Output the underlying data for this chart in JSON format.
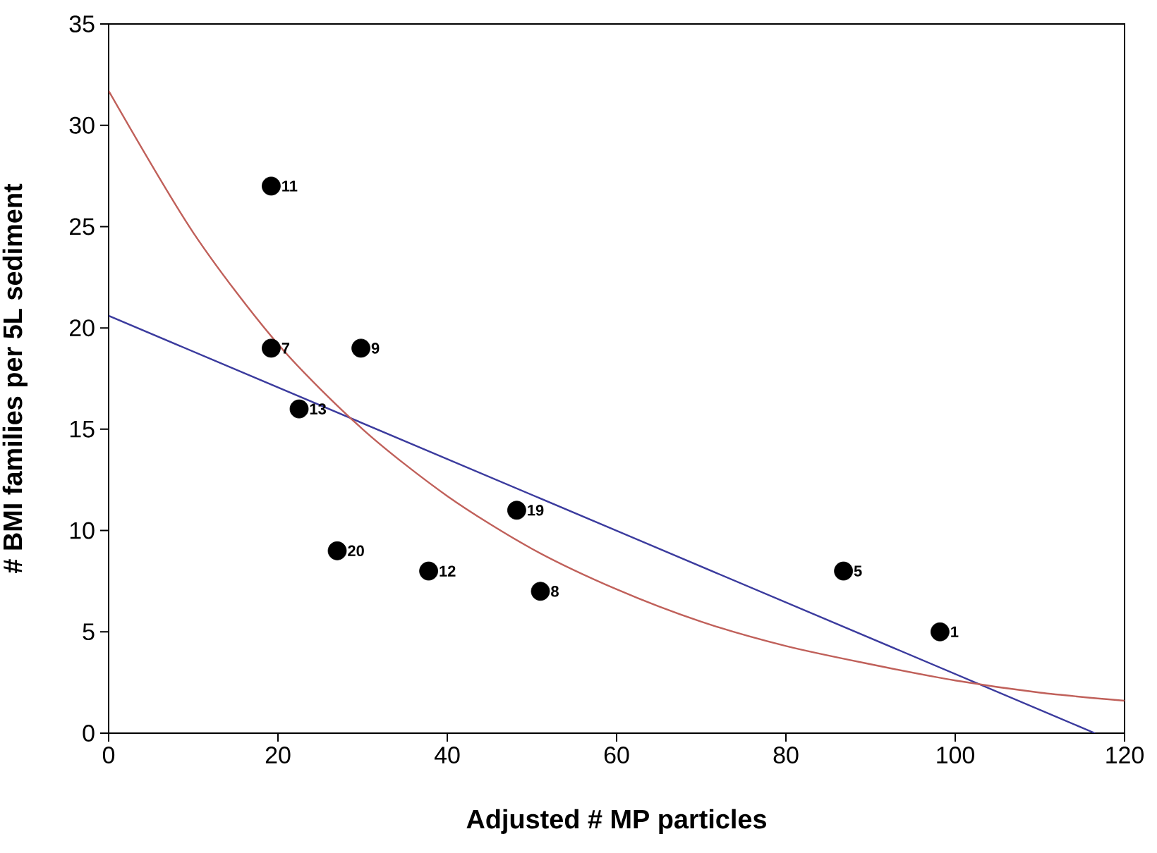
{
  "chart_data": {
    "type": "scatter",
    "xlabel": "Adjusted # MP particles",
    "ylabel": "# BMI families per 5L sediment",
    "xlim": [
      0,
      120
    ],
    "ylim": [
      0,
      35
    ],
    "xticks": [
      0,
      20,
      40,
      60,
      80,
      100,
      120
    ],
    "yticks": [
      0,
      5,
      10,
      15,
      20,
      25,
      30,
      35
    ],
    "grid": false,
    "series": [
      {
        "color": "#000000",
        "marker": "circle",
        "x": [
          19.2,
          19.2,
          29.8,
          22.5,
          27,
          37.8,
          48.2,
          51,
          86.8,
          98.2
        ],
        "values": [
          27,
          19,
          19,
          16,
          9,
          8,
          11,
          7,
          8,
          5
        ]
      },
      {
        "type": "line",
        "color": "#3b3b9e",
        "marker": "none",
        "x": [
          0,
          116.5
        ],
        "values": [
          20.6,
          0
        ]
      },
      {
        "type": "line",
        "color": "#c0605a",
        "marker": "none",
        "x": [
          0,
          10,
          20,
          30,
          40,
          50,
          60,
          70,
          80,
          90,
          100,
          110,
          120
        ],
        "values": [
          31.7,
          24.7,
          19.2,
          15.0,
          11.7,
          9.1,
          7.1,
          5.5,
          4.3,
          3.4,
          2.6,
          2.0,
          1.6
        ]
      }
    ],
    "annotations": [
      {
        "text": "11",
        "x": 19.2,
        "y": 27
      },
      {
        "text": "7",
        "x": 19.2,
        "y": 19
      },
      {
        "text": "9",
        "x": 29.8,
        "y": 19
      },
      {
        "text": "13",
        "x": 22.5,
        "y": 16
      },
      {
        "text": "20",
        "x": 27,
        "y": 9
      },
      {
        "text": "12",
        "x": 37.8,
        "y": 8
      },
      {
        "text": "19",
        "x": 48.2,
        "y": 11
      },
      {
        "text": "8",
        "x": 51,
        "y": 7
      },
      {
        "text": "5",
        "x": 86.8,
        "y": 8
      },
      {
        "text": "1",
        "x": 98.2,
        "y": 5
      }
    ]
  }
}
